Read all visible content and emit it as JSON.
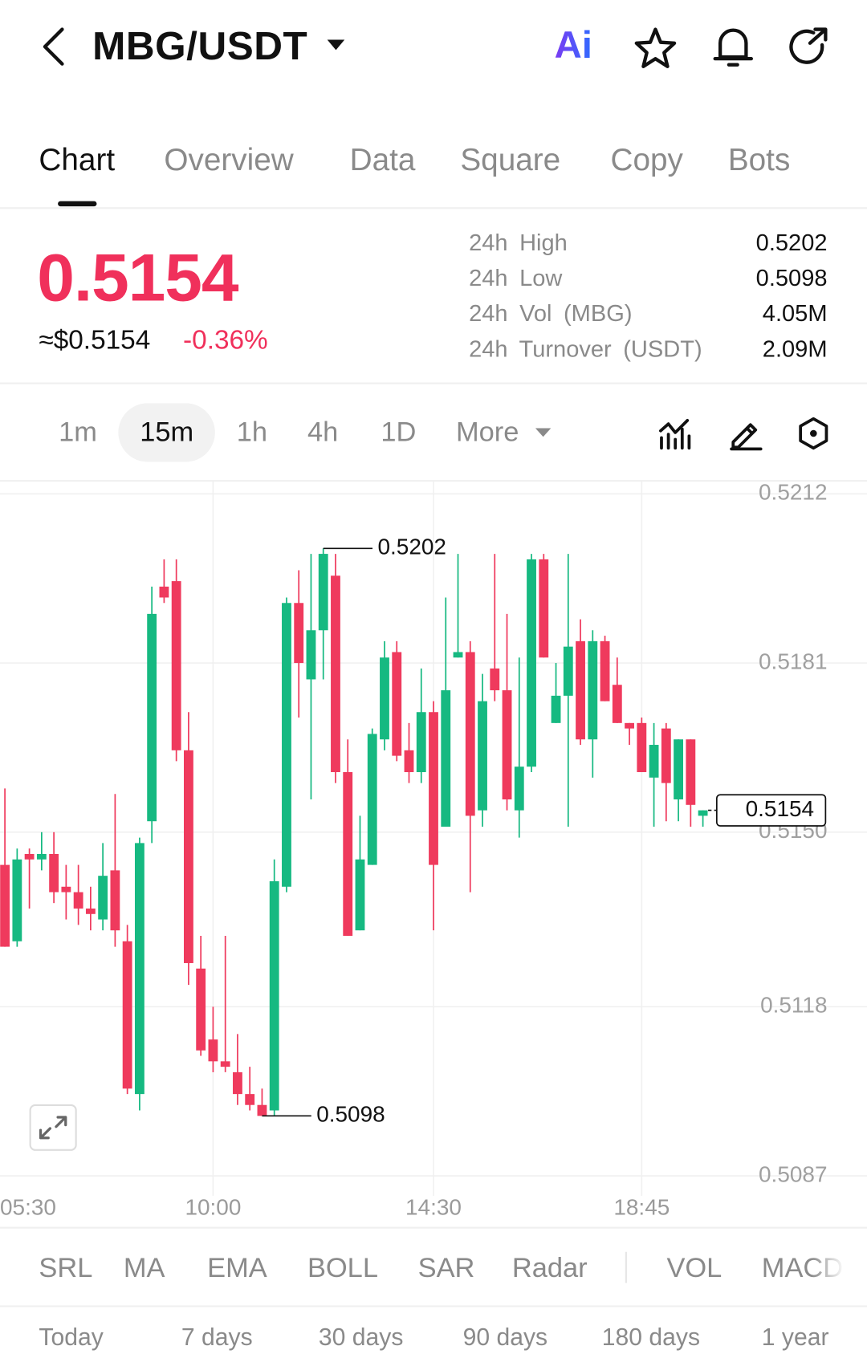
{
  "header": {
    "pair": "MBG/USDT",
    "ai": "Ai"
  },
  "tabs": {
    "items": [
      "Chart",
      "Overview",
      "Data",
      "Square",
      "Copy",
      "Bots"
    ],
    "active": 0
  },
  "ticker": {
    "price": 0.5154,
    "usd_price": "≈$0.5154",
    "change": "-0.36%",
    "stats": [
      {
        "label": "24h High",
        "value": "0.5202"
      },
      {
        "label": "24h Low",
        "value": "0.5098"
      },
      {
        "label": "24h Vol (MBG)",
        "value": "4.05M"
      },
      {
        "label": "24h Turnover (USDT)",
        "value": "2.09M"
      }
    ]
  },
  "timeframes": {
    "items": [
      "1m",
      "15m",
      "1h",
      "4h",
      "1D",
      "More"
    ],
    "active": 1
  },
  "chart_data": {
    "type": "candlestick",
    "open": [
      0.5144,
      0.513,
      0.5146,
      0.5145,
      0.5146,
      0.514,
      0.5139,
      0.5136,
      0.5134,
      0.5143,
      0.513,
      0.5102,
      0.5152,
      0.5195,
      0.5196,
      0.5165,
      0.5125,
      0.5112,
      0.5108,
      0.5106,
      0.5102,
      0.51,
      0.5099,
      0.514,
      0.5192,
      0.5178,
      0.5187,
      0.5197,
      0.5161,
      0.5132,
      0.5144,
      0.5167,
      0.5183,
      0.5165,
      0.5161,
      0.5172,
      0.5151,
      0.5182,
      0.5183,
      0.5154,
      0.518,
      0.5176,
      0.5154,
      0.5162,
      0.52,
      0.517,
      0.5175,
      0.5185,
      0.5167,
      0.5185,
      0.5177,
      0.517,
      0.517,
      0.516,
      0.5169,
      0.5156,
      0.5167,
      0.5153
    ],
    "high": [
      0.5158,
      0.5147,
      0.5147,
      0.515,
      0.515,
      0.5144,
      0.5144,
      0.514,
      0.5148,
      0.5157,
      0.5133,
      0.5149,
      0.5195,
      0.52,
      0.52,
      0.5172,
      0.5131,
      0.5118,
      0.5131,
      0.5113,
      0.5107,
      0.5103,
      0.5145,
      0.5193,
      0.5198,
      0.5201,
      0.5202,
      0.5201,
      0.5167,
      0.5153,
      0.5169,
      0.5185,
      0.5185,
      0.517,
      0.518,
      0.5174,
      0.5193,
      0.5201,
      0.5185,
      0.5179,
      0.5201,
      0.519,
      0.5182,
      0.5201,
      0.5201,
      0.5181,
      0.5201,
      0.5189,
      0.5187,
      0.5186,
      0.5182,
      0.517,
      0.5171,
      0.517,
      0.517,
      0.5167,
      0.5167,
      0.5154
    ],
    "low": [
      0.5129,
      0.5129,
      0.5136,
      0.5143,
      0.5137,
      0.5134,
      0.5133,
      0.5132,
      0.5132,
      0.5129,
      0.5102,
      0.5099,
      0.5148,
      0.5192,
      0.5163,
      0.5122,
      0.5109,
      0.5106,
      0.5106,
      0.51,
      0.5099,
      0.5098,
      0.5098,
      0.5139,
      0.5171,
      0.5156,
      0.5178,
      0.5159,
      0.5131,
      0.5132,
      0.5144,
      0.5165,
      0.5163,
      0.5159,
      0.5159,
      0.5132,
      0.5151,
      0.5182,
      0.5139,
      0.5151,
      0.5174,
      0.5154,
      0.5149,
      0.5161,
      0.5182,
      0.517,
      0.5151,
      0.5166,
      0.516,
      0.5174,
      0.517,
      0.5166,
      0.5161,
      0.5151,
      0.5152,
      0.5152,
      0.5151,
      0.5151
    ],
    "close": [
      0.5129,
      0.5145,
      0.5145,
      0.5146,
      0.5139,
      0.5139,
      0.5136,
      0.5135,
      0.5142,
      0.5132,
      0.5103,
      0.5148,
      0.519,
      0.5193,
      0.5165,
      0.5126,
      0.511,
      0.5108,
      0.5107,
      0.5102,
      0.51,
      0.5098,
      0.5141,
      0.5192,
      0.5181,
      0.5187,
      0.5201,
      0.5161,
      0.5131,
      0.5145,
      0.5168,
      0.5182,
      0.5164,
      0.5161,
      0.5172,
      0.5144,
      0.5176,
      0.5183,
      0.5153,
      0.5174,
      0.5176,
      0.5156,
      0.5162,
      0.52,
      0.5182,
      0.5175,
      0.5184,
      0.5167,
      0.5185,
      0.5174,
      0.517,
      0.5169,
      0.5161,
      0.5166,
      0.5159,
      0.5167,
      0.5155,
      0.5154
    ],
    "up_color": "#16b981",
    "down_color": "#ef3a5d",
    "ylim": [
      0.5087,
      0.5212
    ],
    "yticks": [
      0.5087,
      0.5118,
      {
        "value": 0.515,
        "label": "0.5150"
      },
      0.5181,
      0.5212
    ],
    "xlim": [
      -0.4,
      70.4
    ],
    "xticks": [
      {
        "value": -1,
        "label": "05:30"
      },
      {
        "value": 17,
        "label": "10:00"
      },
      {
        "value": 35,
        "label": "14:30"
      },
      {
        "value": 52,
        "label": "18:45"
      }
    ],
    "grid": true,
    "annotations": [
      0.5202,
      0.5098
    ],
    "last_price": 0.5154
  },
  "indicators": [
    "SRL",
    "MA",
    "EMA",
    "BOLL",
    "SAR",
    "Radar",
    "VOL",
    "MACD"
  ],
  "periods": [
    "Today",
    "7 days",
    "30 days",
    "90 days",
    "180 days",
    "1 year"
  ]
}
